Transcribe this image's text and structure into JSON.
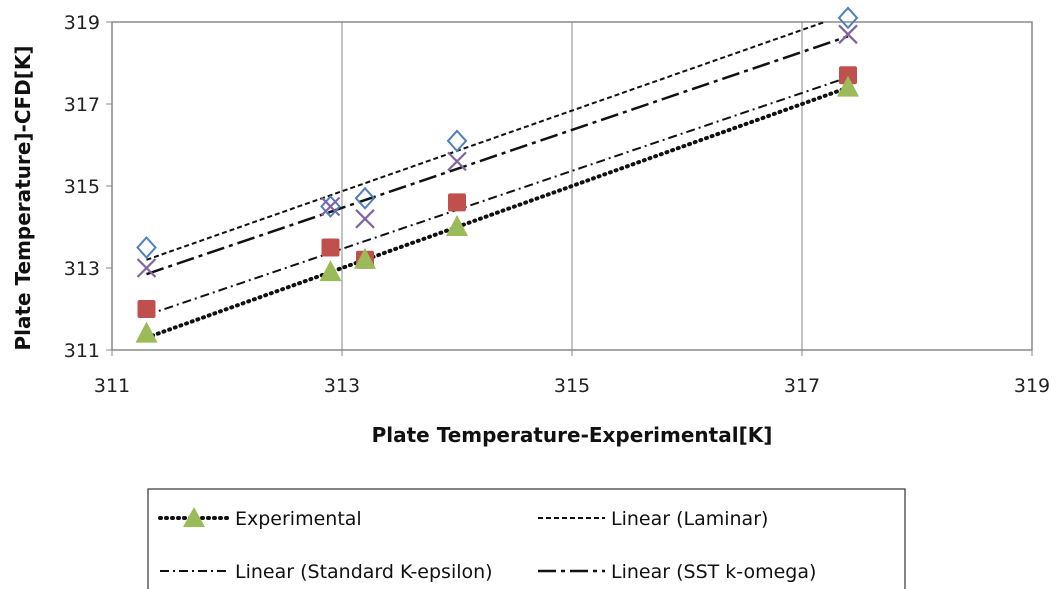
{
  "chart_data": {
    "type": "scatter",
    "xlabel": "Plate Temperature-Experimental[K]",
    "ylabel": "Plate Temperature]-CFD[K]",
    "xlim": [
      311,
      319
    ],
    "ylim": [
      311,
      319
    ],
    "xticks": [
      "311",
      "313",
      "315",
      "317",
      "319"
    ],
    "yticks": [
      "311",
      "313",
      "315",
      "317",
      "319"
    ],
    "grid": "vertical",
    "legend_position": "bottom",
    "series": [
      {
        "key": "laminar",
        "marker": "diamond",
        "color": "#4f81bd",
        "x": [
          311.3,
          312.9,
          313.2,
          314.0,
          317.4
        ],
        "y": [
          313.5,
          314.5,
          314.7,
          316.1,
          319.2
        ]
      },
      {
        "key": "sst",
        "marker": "x",
        "color": "#8064a2",
        "x": [
          311.3,
          312.9,
          313.2,
          314.0,
          317.4
        ],
        "y": [
          313.0,
          314.5,
          314.2,
          315.6,
          318.7
        ]
      },
      {
        "key": "kepsilon",
        "marker": "square",
        "color": "#c0504d",
        "x": [
          311.3,
          312.9,
          313.2,
          314.0,
          317.4
        ],
        "y": [
          312.0,
          313.5,
          313.2,
          314.6,
          317.7
        ]
      },
      {
        "key": "experimental",
        "marker": "triangle",
        "color": "#9bbb59",
        "x": [
          311.3,
          312.9,
          313.2,
          314.0,
          317.4
        ],
        "y": [
          311.4,
          312.9,
          313.2,
          314.0,
          317.4
        ]
      }
    ],
    "trendlines": [
      {
        "key": "experimental",
        "style": "dotted",
        "x": [
          311.3,
          317.4
        ],
        "y": [
          311.3,
          317.4
        ]
      },
      {
        "key": "laminar",
        "style": "dashed",
        "x": [
          311.3,
          317.4
        ],
        "y": [
          313.2,
          319.2
        ]
      },
      {
        "key": "kepsilon",
        "style": "dashdot",
        "x": [
          311.3,
          317.4
        ],
        "y": [
          311.85,
          317.65
        ]
      },
      {
        "key": "sst",
        "style": "longdashdot",
        "x": [
          311.3,
          317.4
        ],
        "y": [
          312.85,
          318.65
        ]
      }
    ],
    "legend": {
      "experimental": "Experimental",
      "laminar": "Linear (Laminar)",
      "kepsilon": "Linear (Standard K-epsilon)",
      "sst": "Linear (SST k-omega)"
    }
  }
}
